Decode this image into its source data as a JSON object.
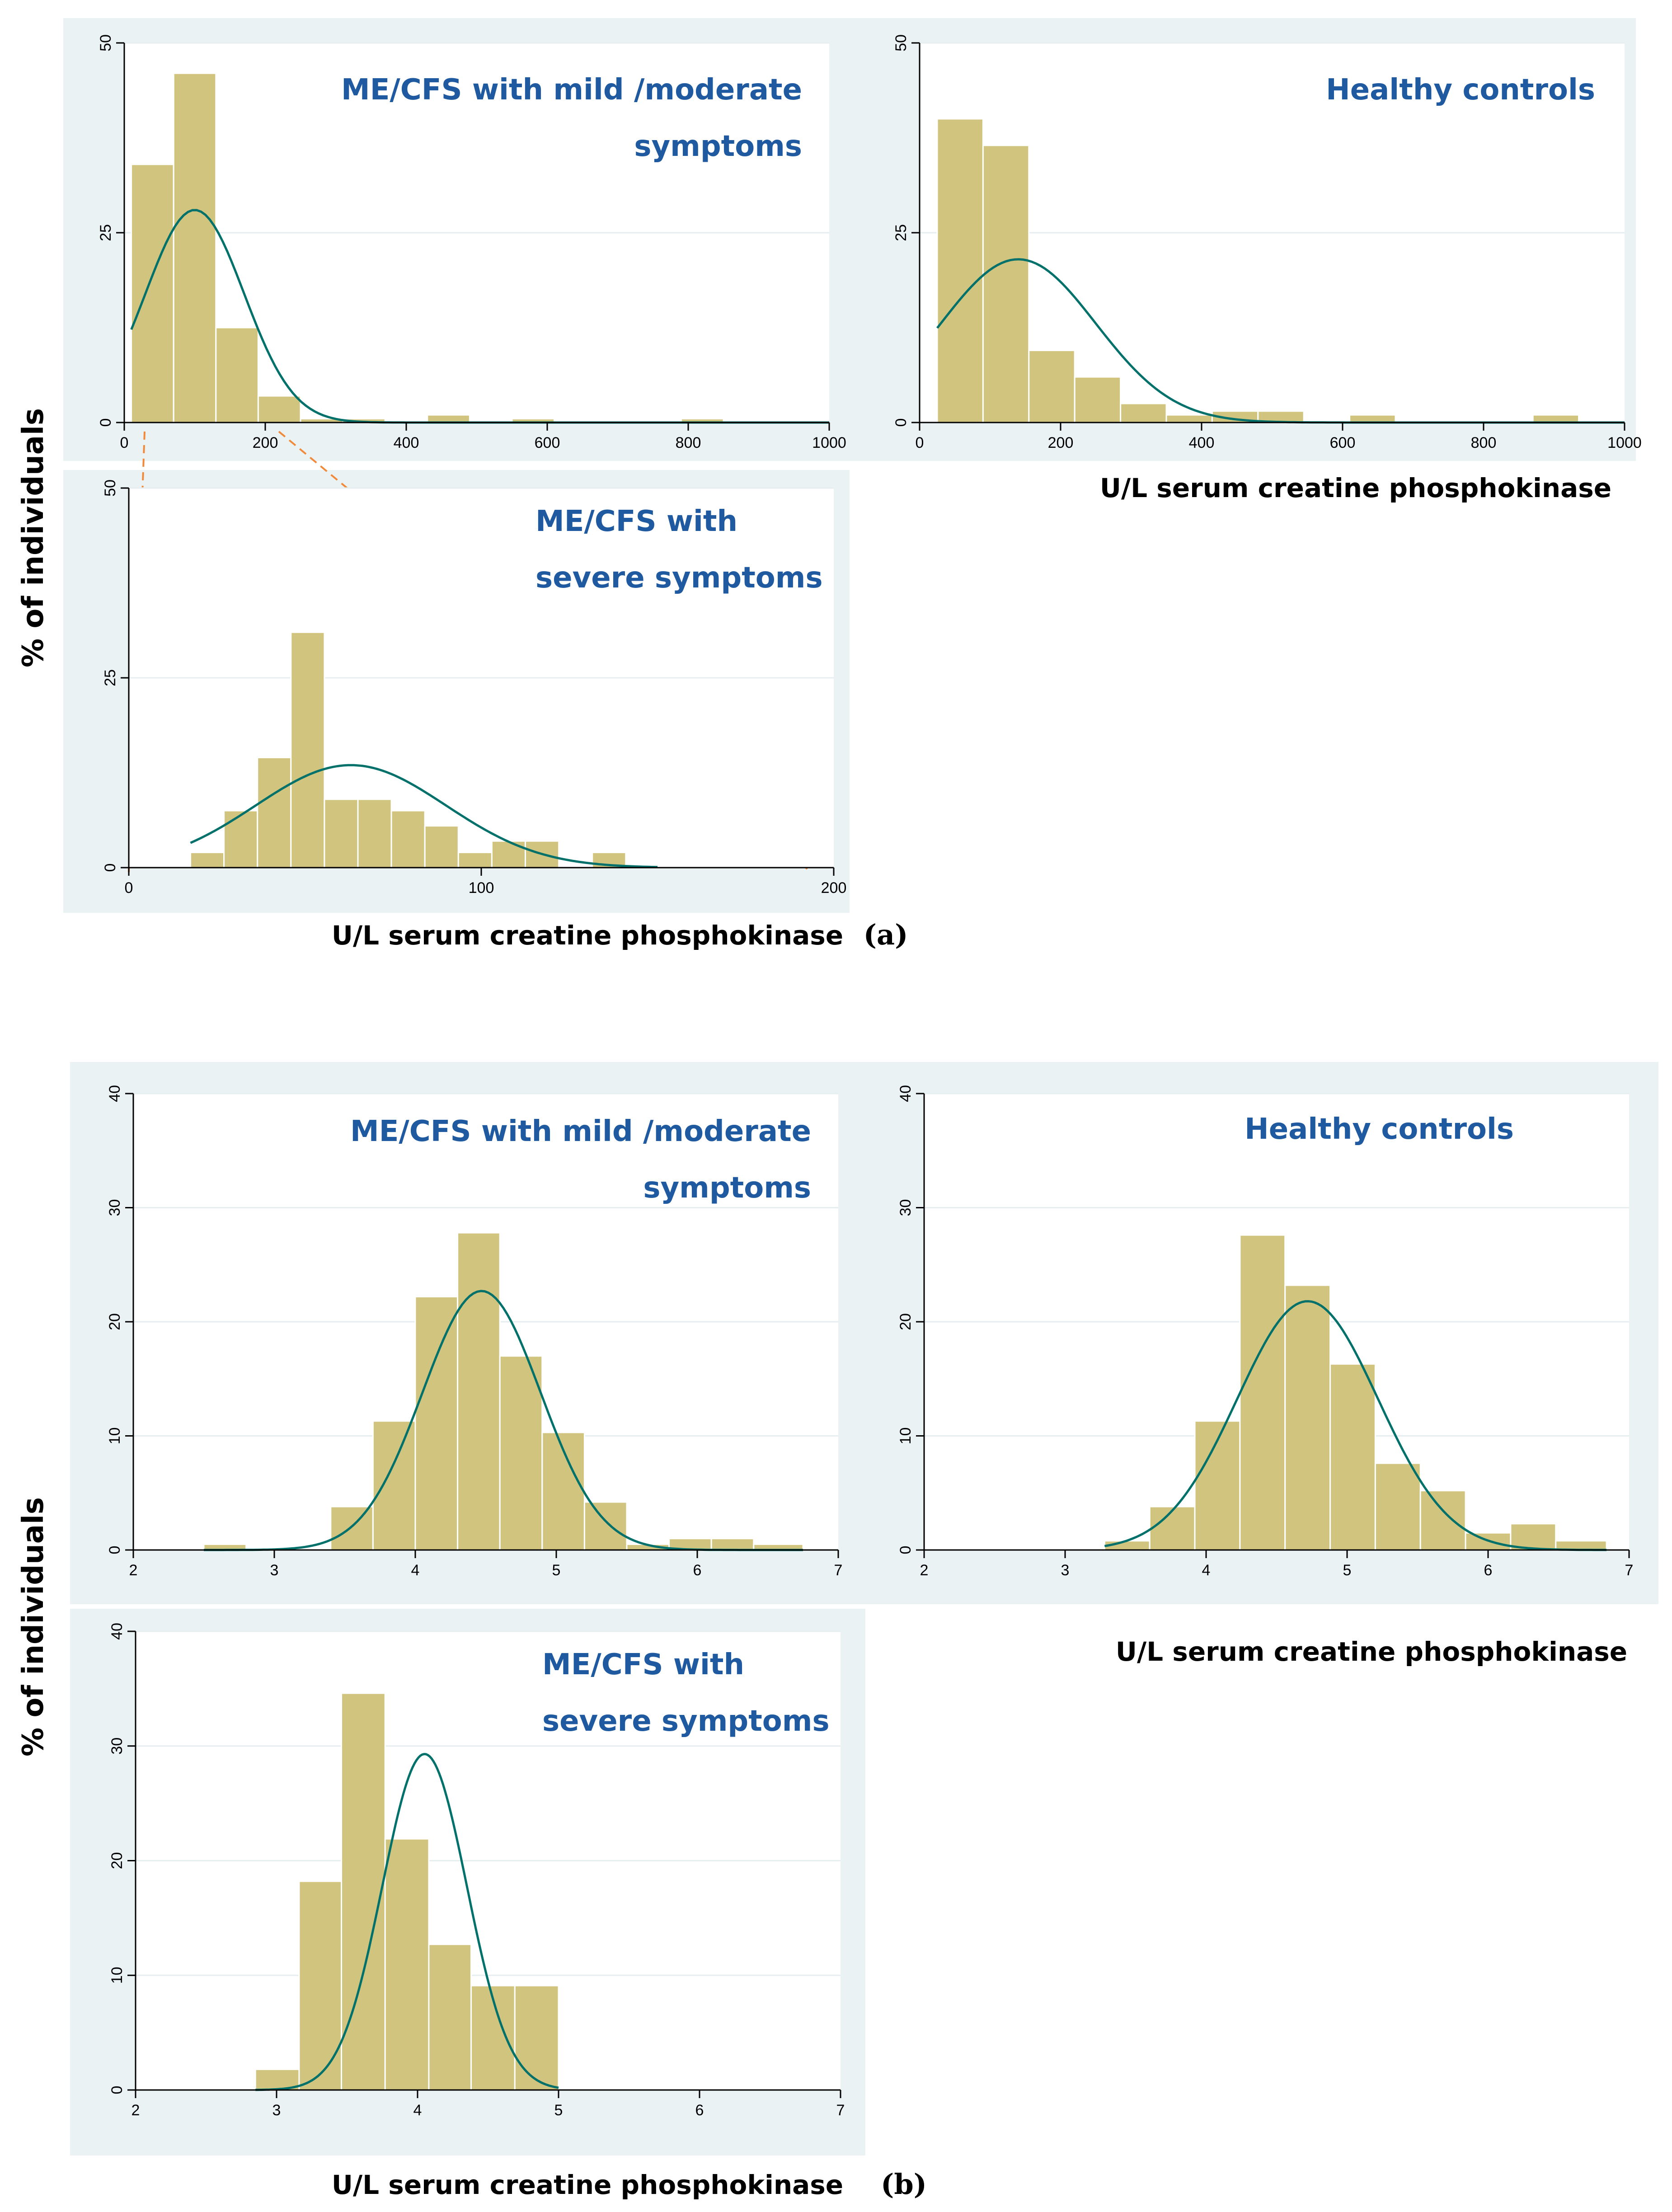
{
  "panel_labels": {
    "a": "(a)",
    "b": "(b)"
  },
  "y_axis_title": "% of individuals",
  "x_axis_title": "U/L serum creatine phosphokinase",
  "chart_data": [
    {
      "id": "a1",
      "type": "histogram",
      "title_lines": [
        "ME/CFS with mild /moderate",
        "symptoms"
      ],
      "xlim": [
        0,
        1000
      ],
      "ylim": [
        0,
        50
      ],
      "xticks": [
        0,
        200,
        400,
        600,
        800,
        1000
      ],
      "yticks": [
        0,
        25,
        50
      ],
      "bin_edges": [
        10,
        70,
        130,
        190,
        250,
        310,
        370,
        430,
        490,
        550,
        610,
        670,
        730,
        790,
        850
      ],
      "values": [
        34,
        46,
        12.5,
        3.5,
        0.5,
        0.5,
        0,
        1,
        0,
        0.5,
        0,
        0,
        0,
        0.5
      ],
      "normal_curve": {
        "mean": 100,
        "sd": 70,
        "peak": 28,
        "range": [
          10,
          1000
        ]
      }
    },
    {
      "id": "a2",
      "type": "histogram",
      "title_lines": [
        "Healthy controls"
      ],
      "xlim": [
        0,
        1000
      ],
      "ylim": [
        0,
        50
      ],
      "xticks": [
        0,
        200,
        400,
        600,
        800,
        1000
      ],
      "yticks": [
        0,
        25,
        50
      ],
      "bin_edges": [
        25,
        90,
        155,
        220,
        285,
        350,
        415,
        480,
        545,
        610,
        675,
        740,
        805,
        870,
        935
      ],
      "values": [
        40,
        36.5,
        9.5,
        6,
        2.5,
        1,
        1.5,
        1.5,
        0,
        1,
        0,
        0,
        0,
        1
      ],
      "normal_curve": {
        "mean": 140,
        "sd": 110,
        "peak": 21.5,
        "range": [
          25,
          1000
        ]
      }
    },
    {
      "id": "a3",
      "type": "histogram",
      "title_lines": [
        "ME/CFS with",
        "severe symptoms"
      ],
      "xlim": [
        0,
        200
      ],
      "ylim": [
        0,
        50
      ],
      "xticks": [
        0,
        100,
        200
      ],
      "yticks": [
        0,
        25,
        50
      ],
      "bin_edges": [
        17.5,
        27,
        36.5,
        46,
        55.5,
        65,
        74.5,
        84,
        93.5,
        103,
        112.5,
        122,
        131.5,
        141,
        150.5
      ],
      "values": [
        2,
        7.5,
        14.5,
        31,
        9,
        9,
        7.5,
        5.5,
        2,
        3.5,
        3.5,
        0,
        2,
        0
      ],
      "normal_curve": {
        "mean": 63,
        "sd": 27,
        "peak": 13.5,
        "range": [
          17.5,
          150
        ]
      }
    },
    {
      "id": "b1",
      "type": "histogram",
      "title_lines": [
        "ME/CFS with mild /moderate",
        "symptoms"
      ],
      "xlim": [
        2,
        7
      ],
      "ylim": [
        0,
        40
      ],
      "xticks": [
        2,
        3,
        4,
        5,
        6,
        7
      ],
      "yticks": [
        0,
        10,
        20,
        30,
        40
      ],
      "bin_edges": [
        2.5,
        2.8,
        3.1,
        3.4,
        3.7,
        4.0,
        4.3,
        4.6,
        4.9,
        5.2,
        5.5,
        5.8,
        6.1,
        6.4,
        6.75
      ],
      "values": [
        0.5,
        0,
        0,
        3.8,
        11.3,
        22.2,
        27.8,
        17,
        10.3,
        4.2,
        0.5,
        1,
        1,
        0.5
      ],
      "normal_curve": {
        "mean": 4.47,
        "sd": 0.42,
        "peak": 22.7,
        "range": [
          2.5,
          6.75
        ]
      }
    },
    {
      "id": "b2",
      "type": "histogram",
      "title_lines": [
        "Healthy controls"
      ],
      "xlim": [
        2,
        7
      ],
      "ylim": [
        0,
        40
      ],
      "xticks": [
        2,
        3,
        4,
        5,
        6,
        7
      ],
      "yticks": [
        0,
        10,
        20,
        30,
        40
      ],
      "bin_edges": [
        3.28,
        3.6,
        3.92,
        4.24,
        4.56,
        4.88,
        5.2,
        5.52,
        5.84,
        6.16,
        6.48,
        6.84
      ],
      "values": [
        0.8,
        3.8,
        11.3,
        27.6,
        23.2,
        16.3,
        7.6,
        5.2,
        1.5,
        2.3,
        0.8
      ],
      "normal_curve": {
        "mean": 4.72,
        "sd": 0.5,
        "peak": 21.8,
        "range": [
          3.28,
          6.84
        ]
      }
    },
    {
      "id": "b3",
      "type": "histogram",
      "title_lines": [
        "ME/CFS with",
        "severe symptoms"
      ],
      "xlim": [
        2,
        7
      ],
      "ylim": [
        0,
        40
      ],
      "xticks": [
        2,
        3,
        4,
        5,
        6,
        7
      ],
      "yticks": [
        0,
        10,
        20,
        30,
        40
      ],
      "bin_edges": [
        2.85,
        3.16,
        3.46,
        3.77,
        4.08,
        4.38,
        4.69,
        5.0
      ],
      "values": [
        1.8,
        18.2,
        34.6,
        21.9,
        12.7,
        9.1,
        9.1
      ],
      "normal_curve": {
        "mean": 4.05,
        "sd": 0.3,
        "peak": 29.3,
        "range": [
          2.85,
          5.0
        ]
      }
    }
  ]
}
